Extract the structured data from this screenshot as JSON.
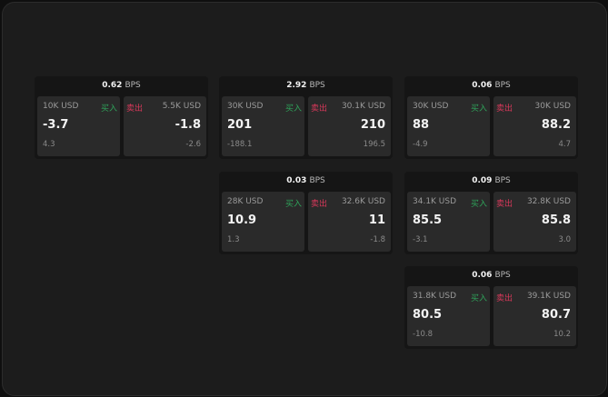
{
  "unit_label": "BPS",
  "buy_label": "买入",
  "sell_label": "卖出",
  "colors": {
    "buy": "#2fa35a",
    "sell": "#d8385a"
  },
  "widgets": [
    {
      "spread": "0.62",
      "buy": {
        "size": "10K USD",
        "price": "-3.7",
        "change": "4.3"
      },
      "sell": {
        "size": "5.5K USD",
        "price": "-1.8",
        "change": "-2.6"
      }
    },
    {
      "spread": "2.92",
      "buy": {
        "size": "30K USD",
        "price": "201",
        "change": "-188.1"
      },
      "sell": {
        "size": "30.1K USD",
        "price": "210",
        "change": "196.5"
      }
    },
    {
      "spread": "0.06",
      "buy": {
        "size": "30K USD",
        "price": "88",
        "change": "-4.9"
      },
      "sell": {
        "size": "30K USD",
        "price": "88.2",
        "change": "4.7"
      }
    },
    {
      "spread": "0.03",
      "buy": {
        "size": "28K USD",
        "price": "10.9",
        "change": "1.3"
      },
      "sell": {
        "size": "32.6K USD",
        "price": "11",
        "change": "-1.8"
      }
    },
    {
      "spread": "0.09",
      "buy": {
        "size": "34.1K USD",
        "price": "85.5",
        "change": "-3.1"
      },
      "sell": {
        "size": "32.8K USD",
        "price": "85.8",
        "change": "3.0"
      }
    },
    {
      "spread": "0.06",
      "buy": {
        "size": "31.8K USD",
        "price": "80.5",
        "change": "-10.8"
      },
      "sell": {
        "size": "39.1K USD",
        "price": "80.7",
        "change": "10.2"
      }
    }
  ]
}
